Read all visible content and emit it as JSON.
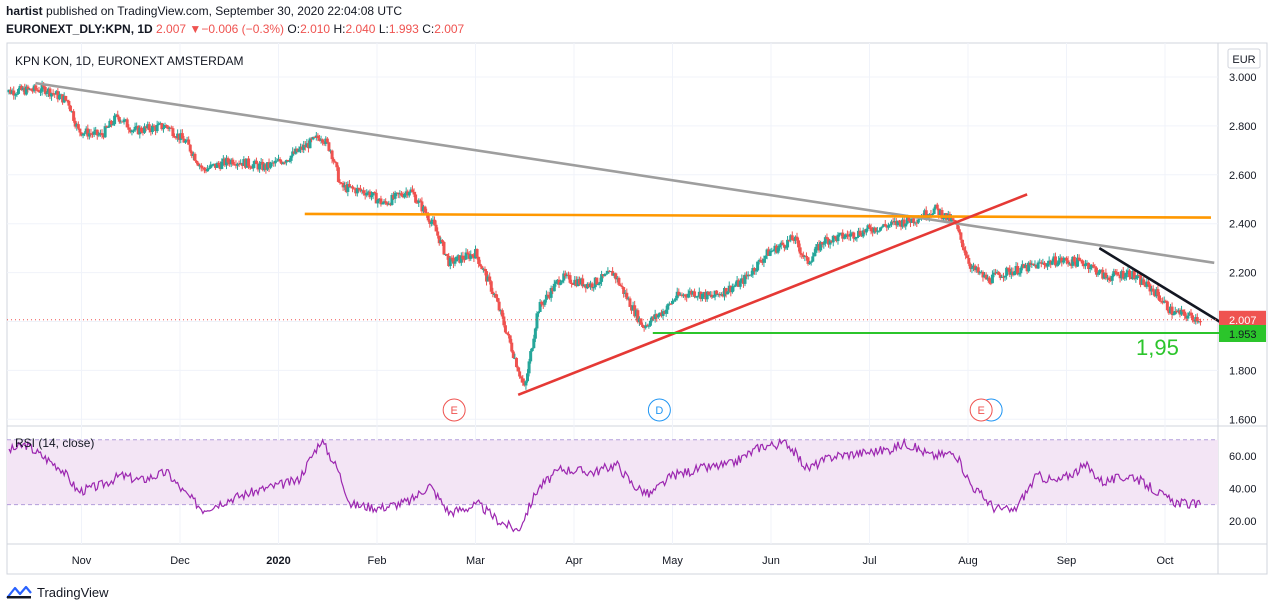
{
  "header": {
    "author": "hartist",
    "published_text": "published on TradingView.com, September 30, 2020 22:04:08 UTC",
    "symbol_line": "EURONEXT_DLY:KPN, 1D",
    "last": "2.007",
    "change": "−0.006 (−0.3%)",
    "o_label": "O:",
    "o": "2.010",
    "h_label": "H:",
    "h": "2.040",
    "l_label": "L:",
    "l": "1.993",
    "c_label": "C:",
    "c": "2.007"
  },
  "chart_data": {
    "type": "candlestick",
    "title": "KPN KON, 1D, EURONEXT AMSTERDAM",
    "currency": "EUR",
    "ylim": [
      1.58,
      3.05
    ],
    "yticks": [
      "3.000",
      "2.800",
      "2.600",
      "2.400",
      "2.200",
      "2.000",
      "1.800",
      "1.600"
    ],
    "x_month_labels": [
      "Nov",
      "Dec",
      "2020",
      "Feb",
      "Mar",
      "Apr",
      "May",
      "Jun",
      "Jul",
      "Aug",
      "Sep",
      "Oct"
    ],
    "last_price_label": "2.007",
    "support_price_label": "1.953",
    "annotation_text": "1,95",
    "event_markers": [
      {
        "label": "E",
        "type": "earnings"
      },
      {
        "label": "D",
        "type": "dividend"
      },
      {
        "label": "E",
        "type": "earnings"
      }
    ],
    "price_path": [
      [
        0,
        2.94
      ],
      [
        1.3,
        2.95
      ],
      [
        2,
        2.9
      ],
      [
        2.3,
        2.78
      ],
      [
        3,
        2.76
      ],
      [
        3.5,
        2.84
      ],
      [
        4,
        2.78
      ],
      [
        5.0,
        2.8
      ],
      [
        5.6,
        2.73
      ],
      [
        6.1,
        2.62
      ],
      [
        7,
        2.66
      ],
      [
        8,
        2.63
      ],
      [
        8.7,
        2.67
      ],
      [
        9.7,
        2.76
      ],
      [
        10,
        2.7
      ],
      [
        10.3,
        2.55
      ],
      [
        11.1,
        2.53
      ],
      [
        11.6,
        2.48
      ],
      [
        12.4,
        2.54
      ],
      [
        13.1,
        2.4
      ],
      [
        13.6,
        2.24
      ],
      [
        14.4,
        2.28
      ],
      [
        15,
        2.1
      ],
      [
        15.6,
        1.85
      ],
      [
        15.9,
        1.72
      ],
      [
        16.3,
        2.05
      ],
      [
        17,
        2.18
      ],
      [
        17.9,
        2.15
      ],
      [
        18.6,
        2.2
      ],
      [
        19,
        2.1
      ],
      [
        19.5,
        1.98
      ],
      [
        20.2,
        2.05
      ],
      [
        20.5,
        2.1
      ],
      [
        21,
        2.12
      ],
      [
        21.6,
        2.1
      ],
      [
        22.5,
        2.16
      ],
      [
        23.3,
        2.28
      ],
      [
        24.1,
        2.34
      ],
      [
        24.5,
        2.24
      ],
      [
        25.0,
        2.33
      ],
      [
        26.0,
        2.36
      ],
      [
        26.5,
        2.38
      ],
      [
        27.2,
        2.4
      ],
      [
        27.8,
        2.42
      ],
      [
        28.4,
        2.46
      ],
      [
        29,
        2.4
      ],
      [
        29.5,
        2.22
      ],
      [
        30,
        2.17
      ],
      [
        30.5,
        2.2
      ],
      [
        31.2,
        2.22
      ],
      [
        32.1,
        2.25
      ],
      [
        33,
        2.24
      ],
      [
        33.6,
        2.18
      ],
      [
        34.3,
        2.2
      ],
      [
        35.1,
        2.12
      ],
      [
        35.6,
        2.04
      ],
      [
        36.2,
        2.02
      ],
      [
        36.5,
        2.01
      ]
    ],
    "rsi": {
      "label": "RSI (14, close)",
      "upper": 70,
      "lower": 30,
      "yticks": [
        "60.00",
        "40.00",
        "20.00"
      ],
      "path": [
        [
          0,
          62
        ],
        [
          0.7,
          67
        ],
        [
          1.2,
          60
        ],
        [
          1.8,
          52
        ],
        [
          2.3,
          38
        ],
        [
          3,
          42
        ],
        [
          3.6,
          48
        ],
        [
          4.2,
          45
        ],
        [
          5,
          50
        ],
        [
          5.5,
          38
        ],
        [
          6.1,
          27
        ],
        [
          7,
          34
        ],
        [
          8,
          40
        ],
        [
          9,
          45
        ],
        [
          9.7,
          70
        ],
        [
          10.2,
          52
        ],
        [
          10.6,
          30
        ],
        [
          11.5,
          28
        ],
        [
          12.4,
          32
        ],
        [
          13,
          42
        ],
        [
          13.6,
          25
        ],
        [
          14.5,
          30
        ],
        [
          15.1,
          20
        ],
        [
          15.7,
          14
        ],
        [
          16.3,
          40
        ],
        [
          17,
          52
        ],
        [
          18,
          50
        ],
        [
          18.7,
          55
        ],
        [
          19.2,
          42
        ],
        [
          19.7,
          36
        ],
        [
          20.4,
          48
        ],
        [
          21.2,
          52
        ],
        [
          22.2,
          55
        ],
        [
          23.1,
          66
        ],
        [
          23.9,
          68
        ],
        [
          24.5,
          52
        ],
        [
          25.3,
          60
        ],
        [
          26.2,
          62
        ],
        [
          27,
          64
        ],
        [
          27.5,
          68
        ],
        [
          28.3,
          60
        ],
        [
          29,
          62
        ],
        [
          29.5,
          42
        ],
        [
          30.2,
          28
        ],
        [
          30.8,
          26
        ],
        [
          31.5,
          48
        ],
        [
          32.1,
          44
        ],
        [
          33.0,
          54
        ],
        [
          33.5,
          44
        ],
        [
          34.4,
          48
        ],
        [
          35,
          40
        ],
        [
          35.6,
          32
        ],
        [
          36.2,
          30
        ],
        [
          36.5,
          30
        ]
      ]
    },
    "drawings": [
      {
        "kind": "trendline",
        "color": "#9e9e9e",
        "from": [
          1.0,
          2.975
        ],
        "to": [
          36.9,
          2.24
        ]
      },
      {
        "kind": "trendline",
        "color": "#ff9800",
        "from": [
          9.2,
          2.44
        ],
        "to": [
          36.8,
          2.425
        ]
      },
      {
        "kind": "trendline",
        "color": "#e53935",
        "from": [
          15.7,
          1.7
        ],
        "to": [
          31.2,
          2.52
        ]
      },
      {
        "kind": "trendline",
        "color": "#131722",
        "from": [
          33.4,
          2.3
        ],
        "to": [
          37.3,
          1.98
        ]
      },
      {
        "kind": "trendline",
        "color": "#2bc52b",
        "from": [
          19.8,
          1.953
        ],
        "to": [
          37.3,
          1.953
        ]
      }
    ],
    "colors": {
      "up": "#26a69a",
      "down": "#ef5350",
      "rsi": "#9c27b0",
      "rsi_band": "#f3e5f5",
      "support": "#2bc52b"
    }
  },
  "footer": {
    "brand": "TradingView"
  }
}
